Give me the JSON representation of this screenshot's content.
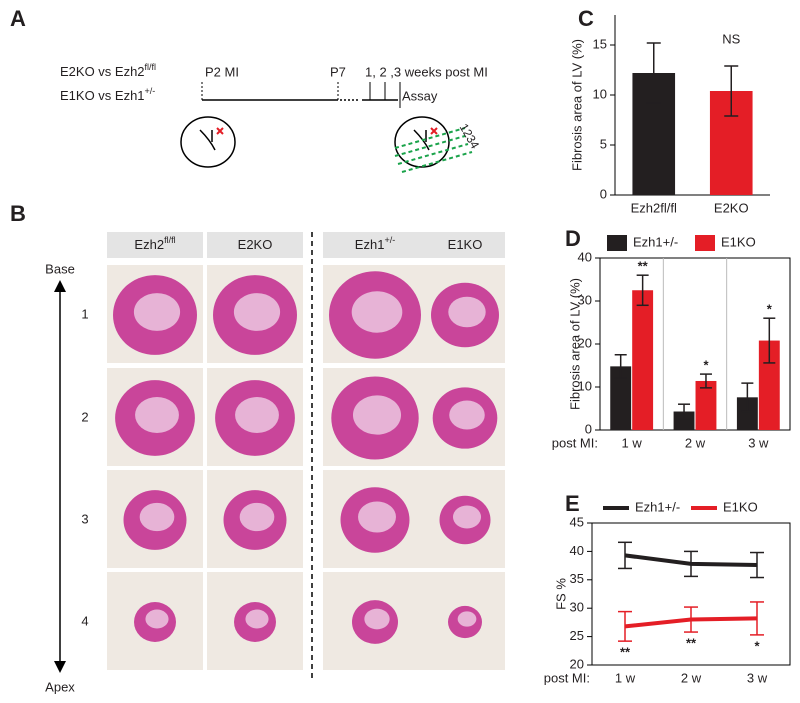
{
  "panel_a": {
    "label": "A",
    "groups": [
      {
        "text": "E2KO vs Ezh2",
        "sup": "fl/fl"
      },
      {
        "text": "E1KO vs Ezh1",
        "sup": "+/-"
      }
    ],
    "events": [
      "P2 MI",
      "P7",
      "1, 2 ,3 weeks post MI",
      "Assay"
    ],
    "sections": "1234"
  },
  "panel_b": {
    "label": "B",
    "columns": [
      {
        "text": "Ezh2",
        "sup": "fl/fl"
      },
      {
        "text": "E2KO"
      },
      {
        "text": "Ezh1",
        "sup": "+/-"
      },
      {
        "text": "E1KO"
      }
    ],
    "rows": [
      "1",
      "2",
      "3",
      "4"
    ],
    "top": "Base",
    "bottom": "Apex"
  },
  "chart_data": [
    {
      "type": "bar",
      "panel": "C",
      "y_label": "Fibrosis area of LV (%)",
      "categories": [
        "Ezh2fl/fl",
        "E2KO"
      ],
      "values": [
        12.2,
        10.4
      ],
      "errors": [
        3.0,
        2.5
      ],
      "colors": [
        "#231f20",
        "#e41e26"
      ],
      "annotations": [
        null,
        "NS"
      ],
      "ylim": [
        0,
        18
      ],
      "yticks": [
        0,
        5,
        10,
        15
      ]
    },
    {
      "type": "bar",
      "panel": "D",
      "y_label": "Fibrosis area of LV (%)",
      "x_label": "post MI:",
      "categories": [
        "1 w",
        "2 w",
        "3 w"
      ],
      "series": [
        {
          "name": "Ezh1+/-",
          "color": "#231f20",
          "values": [
            14.8,
            4.3,
            7.6
          ],
          "errors": [
            2.7,
            1.7,
            3.3
          ]
        },
        {
          "name": "E1KO",
          "color": "#e41e26",
          "values": [
            32.5,
            11.4,
            20.8
          ],
          "errors": [
            3.5,
            1.6,
            5.2
          ]
        }
      ],
      "annotations": [
        "**",
        "*",
        "*"
      ],
      "ylim": [
        0,
        40
      ],
      "yticks": [
        0,
        10,
        20,
        30,
        40
      ]
    },
    {
      "type": "line",
      "panel": "E",
      "y_label": "FS %",
      "x_label": "post MI:",
      "categories": [
        "1 w",
        "2 w",
        "3 w"
      ],
      "series": [
        {
          "name": "Ezh1+/-",
          "color": "#231f20",
          "values": [
            39.3,
            37.8,
            37.6
          ],
          "errors": [
            2.3,
            2.2,
            2.2
          ]
        },
        {
          "name": "E1KO",
          "color": "#e41e26",
          "values": [
            26.8,
            28.0,
            28.2
          ],
          "errors": [
            2.6,
            2.2,
            2.9
          ]
        }
      ],
      "annotations": [
        "**",
        "**",
        "*"
      ],
      "ylim": [
        20,
        45
      ],
      "yticks": [
        20,
        25,
        30,
        35,
        40,
        45
      ]
    }
  ]
}
